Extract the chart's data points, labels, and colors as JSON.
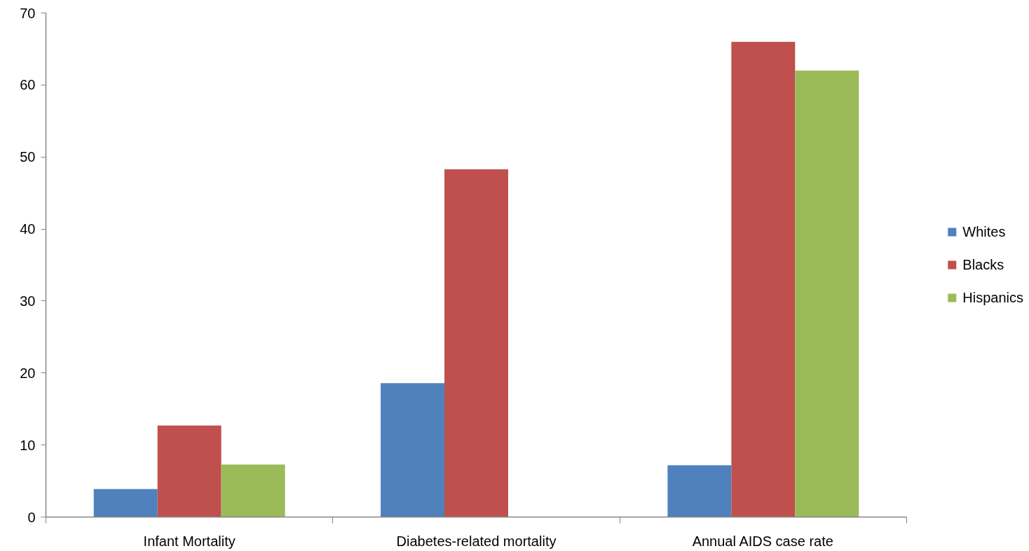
{
  "chart_data": {
    "type": "bar",
    "categories": [
      "Infant Mortality",
      "Diabetes-related mortality",
      "Annual AIDS case rate"
    ],
    "series": [
      {
        "name": "Whites",
        "color": "#4f81bd",
        "values": [
          3.9,
          18.6,
          7.2
        ]
      },
      {
        "name": "Blacks",
        "color": "#c0504d",
        "values": [
          12.7,
          48.3,
          66.0
        ]
      },
      {
        "name": "Hispanics",
        "color": "#9bbb59",
        "values": [
          7.3,
          null,
          62.0
        ]
      }
    ],
    "ylim": [
      0,
      70
    ],
    "yticks": [
      0,
      10,
      20,
      30,
      40,
      50,
      60,
      70
    ],
    "legend": "right"
  }
}
